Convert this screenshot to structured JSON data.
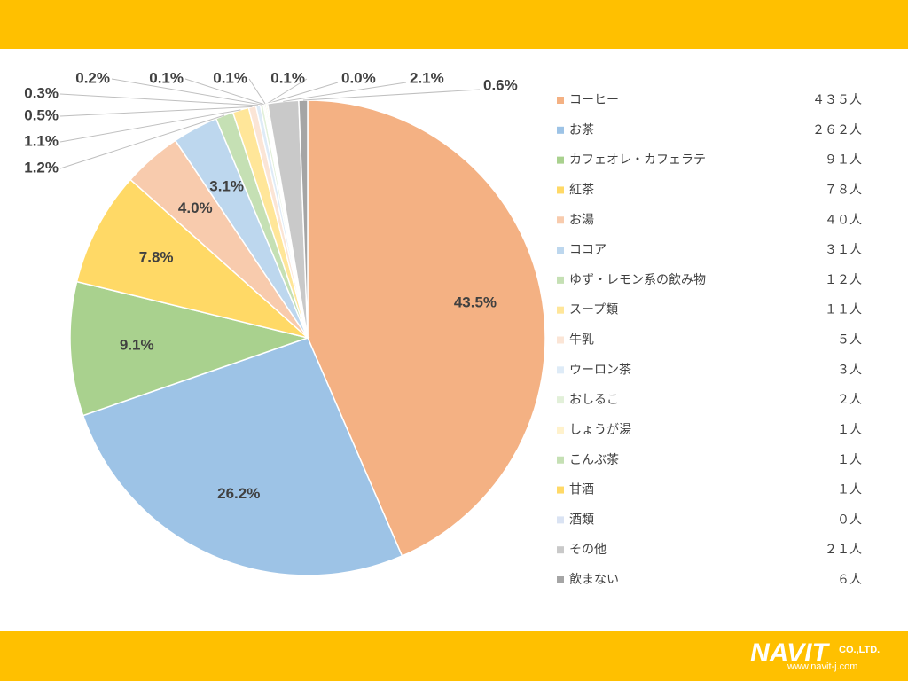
{
  "chart_data": {
    "type": "pie",
    "categories": [
      "コーヒー",
      "お茶",
      "カフェオレ・カフェラテ",
      "紅茶",
      "お湯",
      "ココア",
      "ゆず・レモン系の飲み物",
      "スープ類",
      "牛乳",
      "ウーロン茶",
      "おしるこ",
      "しょうが湯",
      "こんぶ茶",
      "甘酒",
      "酒類",
      "その他",
      "飲まない"
    ],
    "values": [
      43.5,
      26.2,
      9.1,
      7.8,
      4.0,
      3.1,
      1.2,
      1.1,
      0.5,
      0.3,
      0.2,
      0.1,
      0.1,
      0.1,
      0.0,
      2.1,
      0.6
    ],
    "value_labels": [
      "43.5%",
      "26.2%",
      "9.1%",
      "7.8%",
      "4.0%",
      "3.1%",
      "1.2%",
      "1.1%",
      "0.5%",
      "0.3%",
      "0.2%",
      "0.1%",
      "0.1%",
      "0.1%",
      "0.0%",
      "2.1%",
      "0.6%"
    ],
    "counts": [
      435,
      262,
      91,
      78,
      40,
      31,
      12,
      11,
      5,
      3,
      2,
      1,
      1,
      1,
      0,
      21,
      6
    ],
    "count_labels": [
      "４３５人",
      "２６２人",
      "９１人",
      "７８人",
      "４０人",
      "３１人",
      "１２人",
      "１１人",
      "５人",
      "３人",
      "２人",
      "１人",
      "１人",
      "１人",
      "０人",
      "２１人",
      "６人"
    ],
    "colors": [
      "#f4b183",
      "#9dc3e6",
      "#a9d18e",
      "#ffd966",
      "#f8cbad",
      "#bdd7ee",
      "#c5e0b4",
      "#ffe699",
      "#fbe5d6",
      "#deebf7",
      "#e2f0d9",
      "#fff2cc",
      "#c5e0b4",
      "#ffd966",
      "#dae3f3",
      "#c9c9c9",
      "#a5a5a5"
    ],
    "legend": "right"
  },
  "logo": {
    "name": "NAVIT",
    "suffix": "CO.,LTD.",
    "url": "www.navit-j.com"
  }
}
